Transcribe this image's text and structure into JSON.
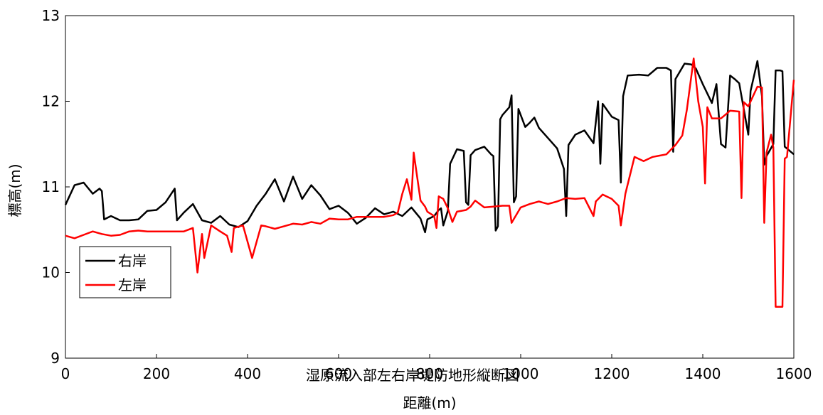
{
  "chart_data": {
    "type": "line",
    "title": "湿原流入部左右岸堤防地形縦断図",
    "xlabel": "距離(m)",
    "ylabel": "標高(m)",
    "xlim": [
      0,
      1600
    ],
    "ylim": [
      9,
      13
    ],
    "xticks": [
      0,
      200,
      400,
      600,
      800,
      1000,
      1200,
      1400,
      1600
    ],
    "yticks": [
      9,
      10,
      11,
      12,
      13
    ],
    "xtick_labels": [
      "0",
      "200",
      "400",
      "600",
      "800",
      "1000",
      "1200",
      "1400",
      "1600"
    ],
    "ytick_labels": [
      "9",
      "10",
      "11",
      "12",
      "13"
    ],
    "grid": false,
    "legend_position": "left",
    "series": [
      {
        "name": "右岸",
        "color": "#000000",
        "points": [
          [
            0,
            10.79
          ],
          [
            20,
            11.02
          ],
          [
            40,
            11.05
          ],
          [
            60,
            10.92
          ],
          [
            75,
            10.98
          ],
          [
            80,
            10.95
          ],
          [
            85,
            10.62
          ],
          [
            100,
            10.66
          ],
          [
            120,
            10.61
          ],
          [
            140,
            10.61
          ],
          [
            160,
            10.62
          ],
          [
            180,
            10.72
          ],
          [
            200,
            10.73
          ],
          [
            220,
            10.82
          ],
          [
            240,
            10.98
          ],
          [
            245,
            10.61
          ],
          [
            260,
            10.7
          ],
          [
            280,
            10.8
          ],
          [
            300,
            10.61
          ],
          [
            320,
            10.58
          ],
          [
            340,
            10.66
          ],
          [
            360,
            10.56
          ],
          [
            380,
            10.53
          ],
          [
            400,
            10.6
          ],
          [
            420,
            10.78
          ],
          [
            440,
            10.92
          ],
          [
            460,
            11.09
          ],
          [
            480,
            10.83
          ],
          [
            500,
            11.12
          ],
          [
            520,
            10.86
          ],
          [
            540,
            11.02
          ],
          [
            560,
            10.9
          ],
          [
            580,
            10.74
          ],
          [
            600,
            10.78
          ],
          [
            620,
            10.7
          ],
          [
            625,
            10.67
          ],
          [
            640,
            10.57
          ],
          [
            660,
            10.64
          ],
          [
            680,
            10.75
          ],
          [
            700,
            10.68
          ],
          [
            720,
            10.71
          ],
          [
            740,
            10.66
          ],
          [
            760,
            10.76
          ],
          [
            780,
            10.63
          ],
          [
            790,
            10.47
          ],
          [
            795,
            10.62
          ],
          [
            810,
            10.66
          ],
          [
            820,
            10.73
          ],
          [
            825,
            10.75
          ],
          [
            830,
            10.55
          ],
          [
            840,
            10.72
          ],
          [
            845,
            11.27
          ],
          [
            860,
            11.44
          ],
          [
            875,
            11.42
          ],
          [
            880,
            10.82
          ],
          [
            885,
            10.79
          ],
          [
            890,
            11.37
          ],
          [
            900,
            11.43
          ],
          [
            920,
            11.47
          ],
          [
            935,
            11.38
          ],
          [
            940,
            11.36
          ],
          [
            945,
            10.49
          ],
          [
            950,
            10.54
          ],
          [
            955,
            11.79
          ],
          [
            960,
            11.84
          ],
          [
            975,
            11.93
          ],
          [
            980,
            12.07
          ],
          [
            985,
            10.82
          ],
          [
            990,
            10.89
          ],
          [
            995,
            11.91
          ],
          [
            1010,
            11.7
          ],
          [
            1020,
            11.75
          ],
          [
            1030,
            11.81
          ],
          [
            1040,
            11.69
          ],
          [
            1060,
            11.57
          ],
          [
            1080,
            11.45
          ],
          [
            1095,
            11.21
          ],
          [
            1100,
            10.66
          ],
          [
            1105,
            11.49
          ],
          [
            1120,
            11.61
          ],
          [
            1140,
            11.66
          ],
          [
            1160,
            11.51
          ],
          [
            1170,
            12.0
          ],
          [
            1175,
            11.27
          ],
          [
            1180,
            11.97
          ],
          [
            1200,
            11.82
          ],
          [
            1215,
            11.78
          ],
          [
            1220,
            11.05
          ],
          [
            1225,
            12.06
          ],
          [
            1235,
            12.3
          ],
          [
            1260,
            12.31
          ],
          [
            1280,
            12.3
          ],
          [
            1300,
            12.39
          ],
          [
            1320,
            12.39
          ],
          [
            1330,
            12.36
          ],
          [
            1335,
            11.41
          ],
          [
            1340,
            12.26
          ],
          [
            1360,
            12.44
          ],
          [
            1375,
            12.43
          ],
          [
            1385,
            12.38
          ],
          [
            1400,
            12.2
          ],
          [
            1420,
            11.98
          ],
          [
            1430,
            12.2
          ],
          [
            1440,
            11.5
          ],
          [
            1450,
            11.46
          ],
          [
            1460,
            12.3
          ],
          [
            1470,
            12.26
          ],
          [
            1480,
            12.21
          ],
          [
            1490,
            11.91
          ],
          [
            1500,
            11.61
          ],
          [
            1505,
            12.12
          ],
          [
            1520,
            12.47
          ],
          [
            1530,
            12.06
          ],
          [
            1535,
            11.26
          ],
          [
            1540,
            11.36
          ],
          [
            1555,
            11.5
          ],
          [
            1560,
            12.36
          ],
          [
            1570,
            12.36
          ],
          [
            1575,
            12.35
          ],
          [
            1580,
            11.47
          ],
          [
            1600,
            11.38
          ]
        ]
      },
      {
        "name": "左岸",
        "color": "#ff0000",
        "points": [
          [
            0,
            10.43
          ],
          [
            20,
            10.4
          ],
          [
            40,
            10.44
          ],
          [
            60,
            10.48
          ],
          [
            80,
            10.45
          ],
          [
            100,
            10.43
          ],
          [
            120,
            10.44
          ],
          [
            140,
            10.48
          ],
          [
            160,
            10.49
          ],
          [
            180,
            10.48
          ],
          [
            200,
            10.48
          ],
          [
            220,
            10.48
          ],
          [
            240,
            10.48
          ],
          [
            260,
            10.48
          ],
          [
            280,
            10.52
          ],
          [
            290,
            10.0
          ],
          [
            300,
            10.45
          ],
          [
            305,
            10.17
          ],
          [
            320,
            10.55
          ],
          [
            340,
            10.48
          ],
          [
            355,
            10.43
          ],
          [
            365,
            10.24
          ],
          [
            370,
            10.52
          ],
          [
            390,
            10.55
          ],
          [
            410,
            10.17
          ],
          [
            430,
            10.55
          ],
          [
            440,
            10.54
          ],
          [
            460,
            10.51
          ],
          [
            480,
            10.54
          ],
          [
            500,
            10.57
          ],
          [
            520,
            10.56
          ],
          [
            540,
            10.59
          ],
          [
            560,
            10.57
          ],
          [
            580,
            10.63
          ],
          [
            600,
            10.62
          ],
          [
            620,
            10.62
          ],
          [
            640,
            10.65
          ],
          [
            660,
            10.65
          ],
          [
            680,
            10.65
          ],
          [
            700,
            10.65
          ],
          [
            720,
            10.67
          ],
          [
            730,
            10.7
          ],
          [
            740,
            10.92
          ],
          [
            750,
            11.09
          ],
          [
            760,
            10.85
          ],
          [
            765,
            11.4
          ],
          [
            780,
            10.84
          ],
          [
            790,
            10.77
          ],
          [
            795,
            10.71
          ],
          [
            810,
            10.66
          ],
          [
            815,
            10.52
          ],
          [
            820,
            10.89
          ],
          [
            830,
            10.86
          ],
          [
            840,
            10.75
          ],
          [
            850,
            10.59
          ],
          [
            860,
            10.71
          ],
          [
            880,
            10.73
          ],
          [
            890,
            10.77
          ],
          [
            900,
            10.84
          ],
          [
            920,
            10.76
          ],
          [
            940,
            10.77
          ],
          [
            960,
            10.78
          ],
          [
            975,
            10.78
          ],
          [
            980,
            10.58
          ],
          [
            1000,
            10.76
          ],
          [
            1020,
            10.8
          ],
          [
            1040,
            10.83
          ],
          [
            1060,
            10.8
          ],
          [
            1080,
            10.83
          ],
          [
            1100,
            10.87
          ],
          [
            1120,
            10.86
          ],
          [
            1140,
            10.87
          ],
          [
            1160,
            10.66
          ],
          [
            1165,
            10.83
          ],
          [
            1180,
            10.91
          ],
          [
            1200,
            10.86
          ],
          [
            1215,
            10.78
          ],
          [
            1220,
            10.55
          ],
          [
            1230,
            10.92
          ],
          [
            1250,
            11.35
          ],
          [
            1270,
            11.3
          ],
          [
            1290,
            11.35
          ],
          [
            1300,
            11.36
          ],
          [
            1320,
            11.38
          ],
          [
            1340,
            11.49
          ],
          [
            1355,
            11.6
          ],
          [
            1365,
            11.9
          ],
          [
            1380,
            12.5
          ],
          [
            1390,
            12.0
          ],
          [
            1400,
            11.7
          ],
          [
            1405,
            11.04
          ],
          [
            1410,
            11.93
          ],
          [
            1420,
            11.8
          ],
          [
            1440,
            11.8
          ],
          [
            1460,
            11.89
          ],
          [
            1480,
            11.88
          ],
          [
            1485,
            10.87
          ],
          [
            1490,
            11.99
          ],
          [
            1500,
            11.94
          ],
          [
            1520,
            12.17
          ],
          [
            1530,
            12.16
          ],
          [
            1535,
            10.58
          ],
          [
            1540,
            11.4
          ],
          [
            1550,
            11.61
          ],
          [
            1555,
            11.46
          ],
          [
            1560,
            9.6
          ],
          [
            1575,
            9.6
          ],
          [
            1580,
            11.33
          ],
          [
            1585,
            11.35
          ],
          [
            1600,
            12.25
          ]
        ]
      }
    ]
  }
}
